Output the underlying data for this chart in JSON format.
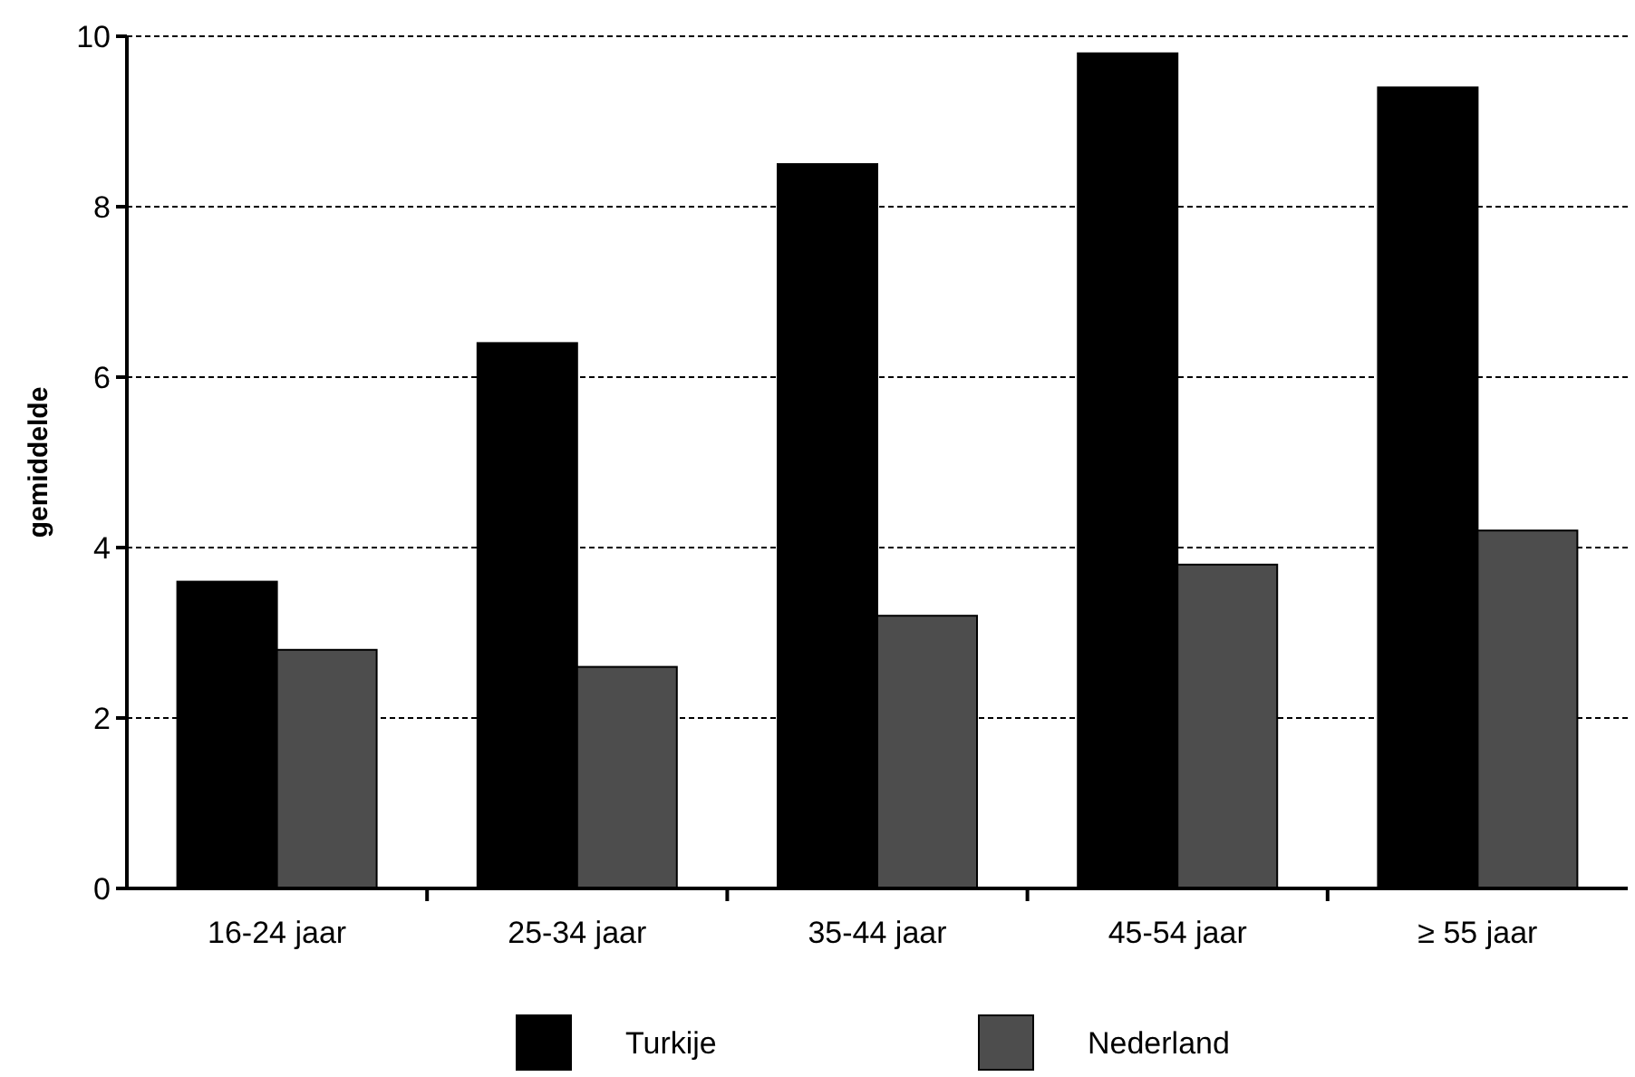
{
  "chart_data": {
    "type": "bar",
    "ylabel": "gemiddelde",
    "categories": [
      "16-24 jaar",
      "25-34 jaar",
      "35-44 jaar",
      "45-54 jaar",
      "≥ 55 jaar"
    ],
    "series": [
      {
        "name": "Turkije",
        "color": "#000000",
        "values": [
          3.6,
          6.4,
          8.5,
          9.8,
          9.4
        ]
      },
      {
        "name": "Nederland",
        "color": "#4d4d4d",
        "values": [
          2.8,
          2.6,
          3.2,
          3.8,
          4.2
        ]
      }
    ],
    "ylim": [
      0,
      10
    ],
    "yticks": [
      0,
      2,
      4,
      6,
      8,
      10
    ],
    "grid": "y",
    "legend": "bottom"
  }
}
